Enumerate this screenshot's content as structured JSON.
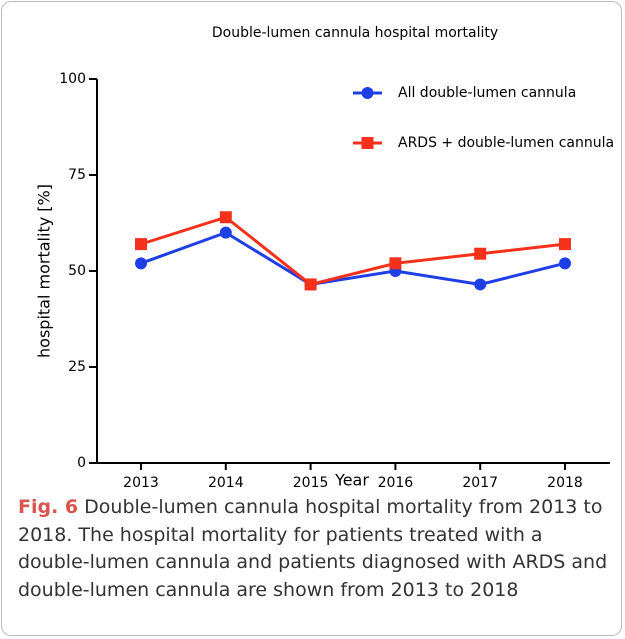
{
  "chart_data": {
    "type": "line",
    "title": "Double-lumen cannula hospital mortality",
    "x_label": "Year",
    "y_label": "hospital mortality [%]",
    "categories": [
      "2013",
      "2014",
      "2015",
      "2016",
      "2017",
      "2018"
    ],
    "series": [
      {
        "name": "All double-lumen cannula",
        "color": "#1f3fe6",
        "marker": "circle",
        "values": [
          52,
          60,
          46.5,
          50,
          46.5,
          52
        ]
      },
      {
        "name": "ARDS + double-lumen cannula",
        "color": "#f5301b",
        "marker": "square",
        "values": [
          57,
          64,
          46.5,
          52,
          54.5,
          57
        ]
      }
    ],
    "ylim": [
      0,
      100
    ],
    "yticks": [
      0,
      25,
      50,
      75,
      100
    ],
    "grid": false,
    "legend": "upper right"
  },
  "caption": {
    "label": "Fig. 6",
    "text": "Double-lumen cannula hospital mortality from 2013 to 2018. The hospital mortality for patients treated with a double-lumen cannula and patients diagnosed with ARDS and double-lumen cannula are shown from 2013 to 2018"
  }
}
